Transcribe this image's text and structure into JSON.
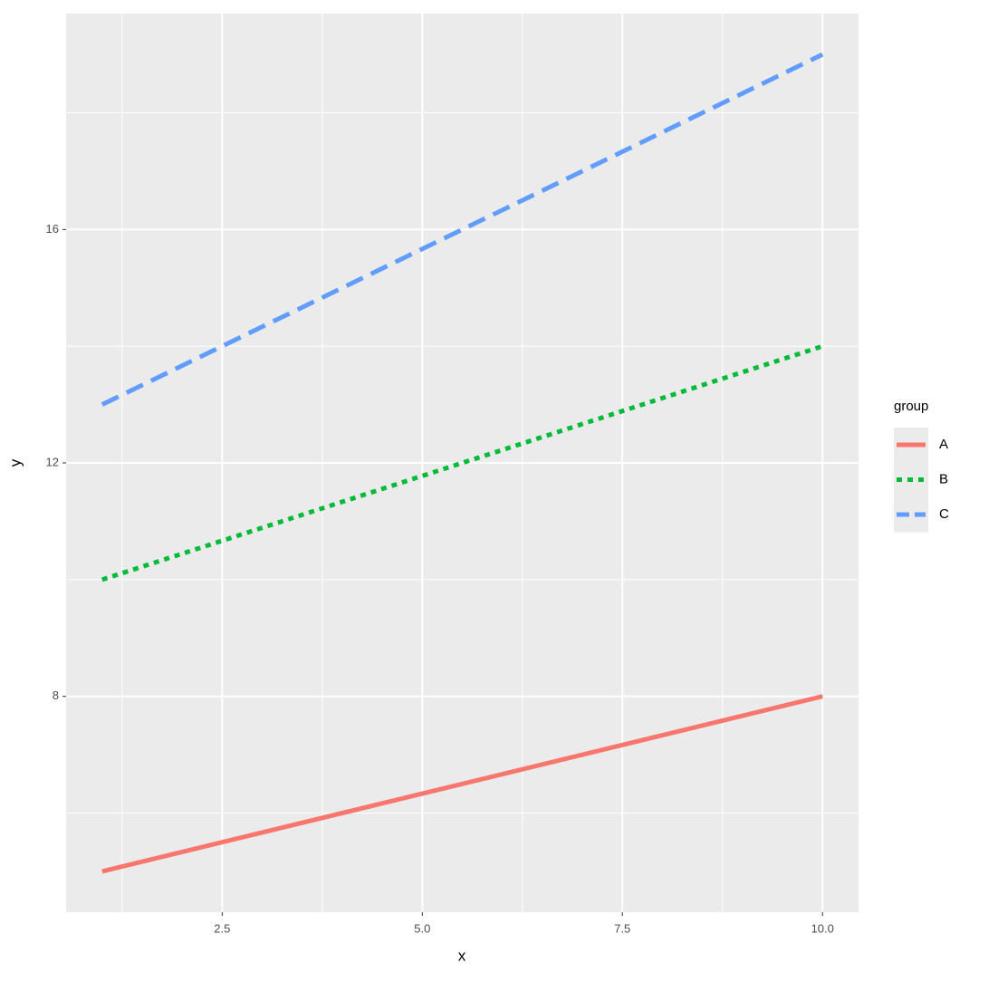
{
  "chart_data": {
    "type": "line",
    "x_label": "x",
    "y_label": "y",
    "legend_title": "group",
    "x": [
      1,
      10
    ],
    "series": [
      {
        "name": "A",
        "color": "#F8766D",
        "linetype": "solid",
        "values": [
          5,
          8
        ]
      },
      {
        "name": "B",
        "color": "#00BA38",
        "linetype": "dotted",
        "values": [
          10,
          14
        ]
      },
      {
        "name": "C",
        "color": "#619CFF",
        "linetype": "dashed",
        "values": [
          13,
          19
        ]
      }
    ],
    "xlim": [
      0.55,
      10.45
    ],
    "xticks": [
      {
        "value": 2.5,
        "label": "2.5"
      },
      {
        "value": 5,
        "label": "5.0"
      },
      {
        "value": 7.5,
        "label": "7.5"
      },
      {
        "value": 10,
        "label": "10.0"
      }
    ],
    "ylim": [
      4.3,
      19.7
    ],
    "yticks": [
      8,
      12,
      16
    ],
    "grid": true,
    "legend_position": "right"
  }
}
